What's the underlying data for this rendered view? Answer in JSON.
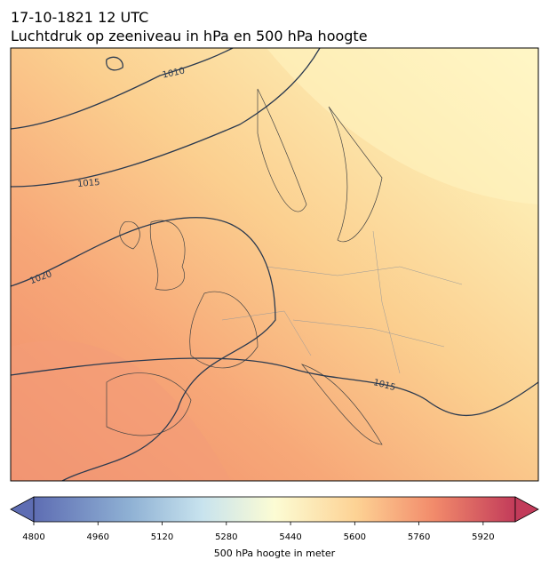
{
  "title": {
    "line1": "17-10-1821 12 UTC",
    "line2": "Luchtdruk op zeeniveau in hPa en 500 hPa hoogte"
  },
  "map": {
    "contour_labels": [
      "1010",
      "1015",
      "1020",
      "1015"
    ]
  },
  "colorbar": {
    "lim": [
      4800,
      6000
    ],
    "ticks": [
      4800,
      4960,
      5120,
      5280,
      5440,
      5600,
      5760,
      5920
    ],
    "label": "500 hPa hoogte in meter"
  }
}
